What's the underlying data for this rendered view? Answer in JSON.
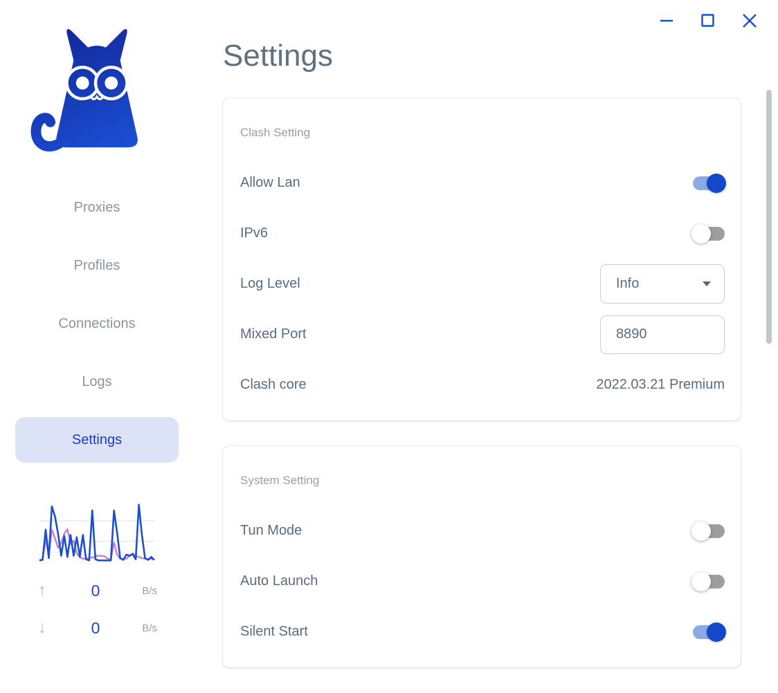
{
  "window": {
    "controls": [
      {
        "name": "minimize"
      },
      {
        "name": "maximize"
      },
      {
        "name": "close"
      }
    ]
  },
  "colors": {
    "primary_blue": "#1553d6",
    "active_nav_bg": "#dce3f7",
    "active_nav_text": "#1c3ac6",
    "toggle_on_track": "#8ca9e6",
    "toggle_on_knob": "#1448cb",
    "toggle_off_track": "#9e9e9e",
    "graph_blue": "#1c50cb",
    "graph_purple": "#c77fd4",
    "gridline": "#e9e9e9",
    "text_slate": "#5c6c7f",
    "text_gray": "#9aa0a6"
  },
  "sidebar": {
    "logo": "clash-cat-logo",
    "items": [
      {
        "label": "Proxies",
        "active": false
      },
      {
        "label": "Profiles",
        "active": false
      },
      {
        "label": "Connections",
        "active": false
      },
      {
        "label": "Logs",
        "active": false
      },
      {
        "label": "Settings",
        "active": true
      }
    ],
    "traffic": {
      "up": {
        "arrow": "↑",
        "value": "0",
        "unit": "B/s"
      },
      "down": {
        "arrow": "↓",
        "value": "0",
        "unit": "B/s"
      },
      "graph": {
        "blue": [
          2,
          3,
          55,
          6,
          95,
          78,
          48,
          10,
          44,
          8,
          46,
          10,
          42,
          8,
          46,
          4,
          2,
          88,
          4,
          2,
          2,
          2,
          2,
          2,
          88,
          50,
          6,
          3,
          12,
          10,
          13,
          4,
          98,
          45,
          6,
          3,
          8,
          3
        ],
        "purple": [
          2,
          4,
          38,
          12,
          55,
          40,
          24,
          32,
          48,
          56,
          30,
          36,
          14,
          8,
          5,
          5,
          6,
          7,
          9,
          10,
          10,
          9,
          5,
          4,
          33,
          12,
          5,
          4,
          5,
          10,
          14,
          10,
          8,
          6,
          5,
          4,
          5,
          3
        ]
      }
    }
  },
  "page": {
    "title": "Settings"
  },
  "sections": [
    {
      "title": "Clash Setting",
      "rows": [
        {
          "label": "Allow Lan",
          "control": "toggle",
          "state": "on"
        },
        {
          "label": "IPv6",
          "control": "toggle",
          "state": "off"
        },
        {
          "label": "Log Level",
          "control": "select",
          "value": "Info"
        },
        {
          "label": "Mixed Port",
          "control": "input",
          "value": "8890"
        },
        {
          "label": "Clash core",
          "control": "text",
          "value": "2022.03.21 Premium"
        }
      ]
    },
    {
      "title": "System Setting",
      "rows": [
        {
          "label": "Tun Mode",
          "control": "toggle",
          "state": "off"
        },
        {
          "label": "Auto Launch",
          "control": "toggle",
          "state": "off"
        },
        {
          "label": "Silent Start",
          "control": "toggle",
          "state": "on"
        }
      ]
    }
  ]
}
